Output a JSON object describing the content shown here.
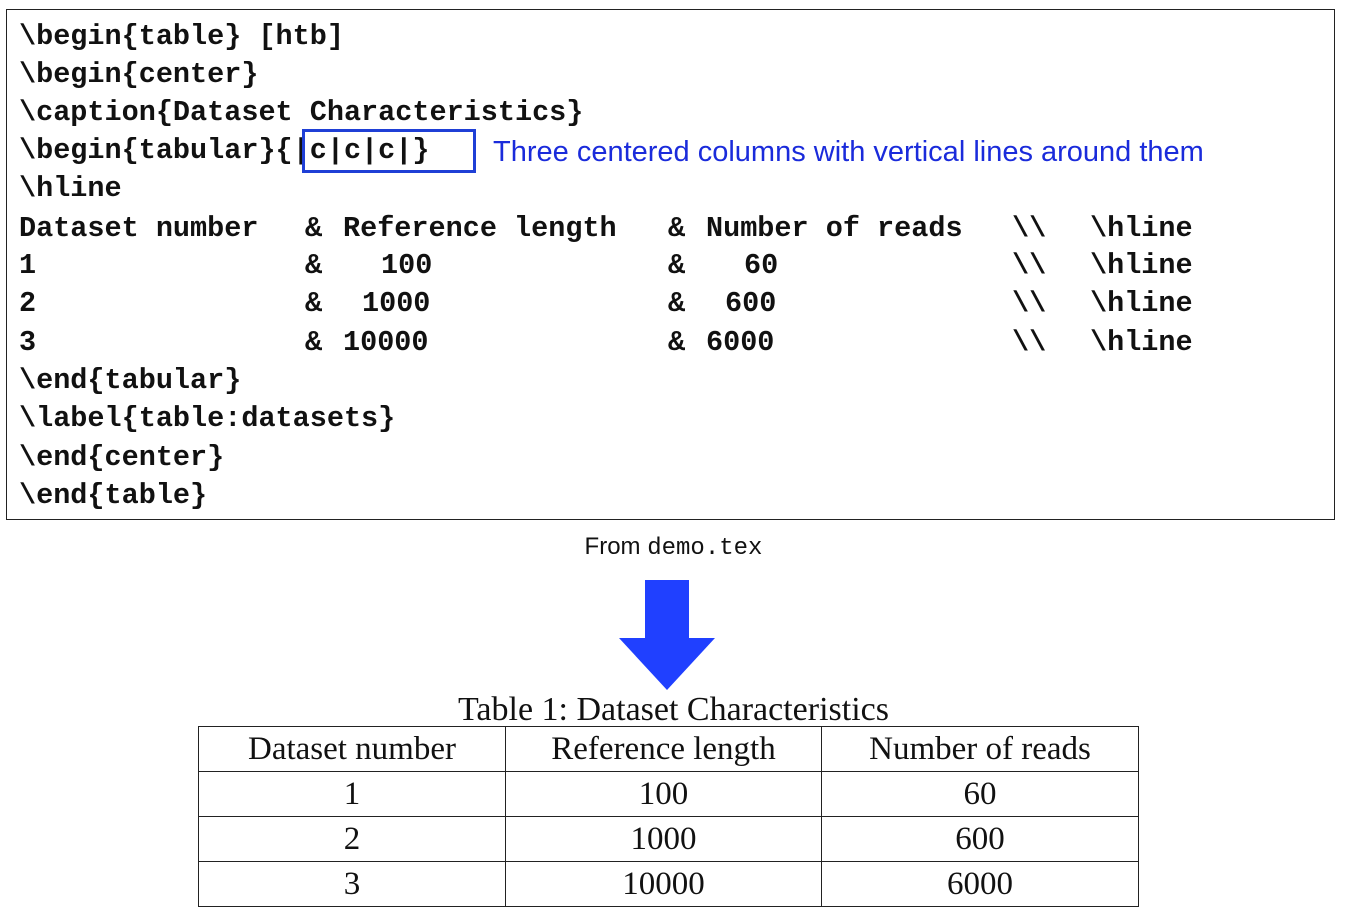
{
  "code": {
    "lines": [
      "\\begin{table} [htb]",
      "\\begin{center}",
      "\\caption{Dataset Characteristics}",
      "\\begin{tabular}{|c|c|c|}",
      "\\hline"
    ],
    "header_row": {
      "c1": "Dataset number",
      "amp1": "&",
      "c2": "Reference length",
      "amp2": "&",
      "c3": "Number of reads",
      "end": "\\\\",
      "hline": "\\hline"
    },
    "rows": [
      {
        "c1": "1",
        "amp1": "&",
        "c2": "100",
        "amp2": "&",
        "c3": "60",
        "end": "\\\\",
        "hline": "\\hline"
      },
      {
        "c1": "2",
        "amp1": "&",
        "c2": "1000",
        "amp2": "&",
        "c3": "600",
        "end": "\\\\",
        "hline": "\\hline"
      },
      {
        "c1": "3",
        "amp1": "&",
        "c2": "10000",
        "amp2": "&",
        "c3": "6000",
        "end": "\\\\",
        "hline": "\\hline"
      }
    ],
    "closing_lines": [
      "\\end{tabular}",
      "\\label{table:datasets}",
      "\\end{center}",
      "\\end{table}"
    ]
  },
  "annotation": {
    "text": "Three centered columns with vertical lines around them",
    "color": "#1a2bdb"
  },
  "source": {
    "prefix": "From ",
    "file": "demo.tex"
  },
  "arrow": {
    "color": "#2040ff",
    "icon": "arrow-down-icon"
  },
  "rendered_table": {
    "caption": "Table 1: Dataset Characteristics",
    "headers": [
      "Dataset number",
      "Reference length",
      "Number of reads"
    ],
    "rows": [
      [
        "1",
        "100",
        "60"
      ],
      [
        "2",
        "1000",
        "600"
      ],
      [
        "3",
        "10000",
        "6000"
      ]
    ]
  }
}
